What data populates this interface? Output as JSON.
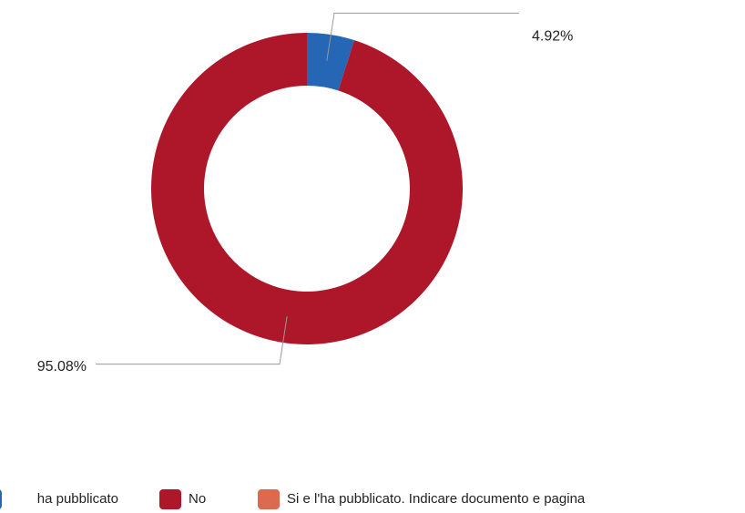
{
  "chart_data": {
    "type": "pie",
    "donut": true,
    "categories": [
      "ha pubblicato",
      "No",
      "Si e l'ha pubblicato. Indicare documento e pagina"
    ],
    "values": [
      4.92,
      95.08,
      0
    ],
    "value_labels": [
      "4.92%",
      "95.08%",
      null
    ],
    "colors": [
      "#2567b4",
      "#ad1729",
      "#dd6a4f"
    ]
  }
}
